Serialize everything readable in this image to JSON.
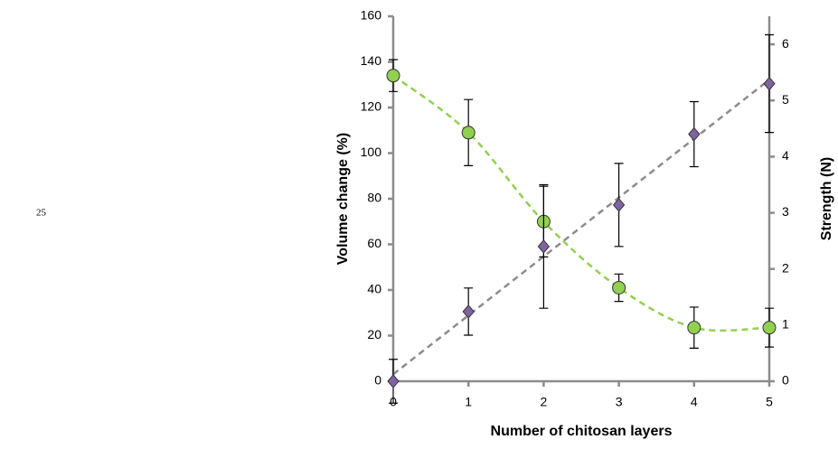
{
  "chart_data": {
    "type": "scatter",
    "annotation": "25",
    "x_label": "Number of chitosan layers",
    "y_label": "Volume change (%)",
    "y2_label": "Strength (N)",
    "x": [
      0,
      1,
      2,
      3,
      4,
      5
    ],
    "series": [
      {
        "name": "Volume change",
        "color": "#92d050",
        "marker": "circle",
        "trend": "curve",
        "values": [
          134,
          109,
          70,
          41,
          23.5,
          23.5
        ],
        "errors": [
          7,
          14.5,
          15.5,
          6,
          9,
          8.5
        ]
      },
      {
        "name": "Strength",
        "color": "#8064a2",
        "marker": "diamond",
        "trend": "linear",
        "trend_color": "#8c8c8c",
        "axis": "y2",
        "values": [
          0,
          1.24,
          2.4,
          3.14,
          4.4,
          5.3
        ],
        "errors": [
          0.39,
          0.42,
          1.1,
          0.74,
          0.58,
          0.87
        ]
      }
    ],
    "xlim": [
      0,
      5
    ],
    "xticks": [
      0,
      1,
      2,
      3,
      4,
      5
    ],
    "ylim": [
      0,
      160
    ],
    "yticks": [
      0,
      20,
      40,
      60,
      80,
      100,
      120,
      140,
      160
    ],
    "y2lim": [
      0,
      6.5
    ],
    "y2ticks": [
      0,
      1,
      2,
      3,
      4,
      5,
      6
    ]
  }
}
